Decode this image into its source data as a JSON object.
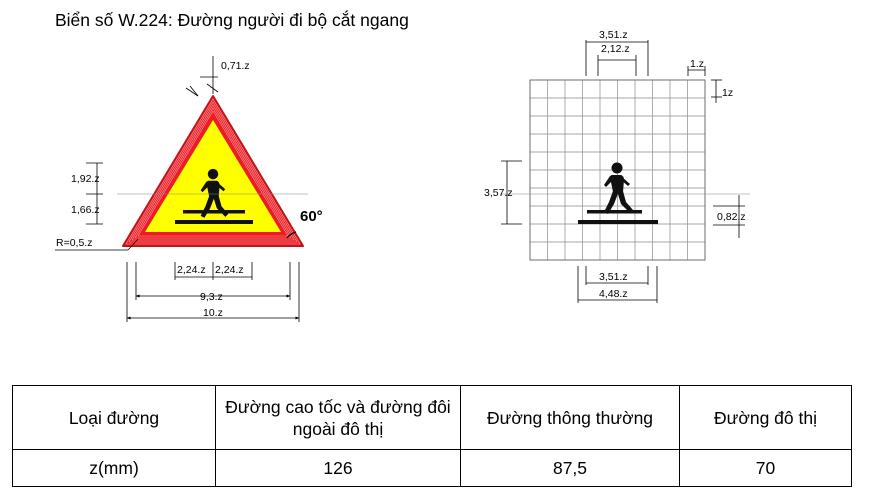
{
  "title": "Biển số W.224: Đường người đi bộ cắt ngang",
  "sign_dimensions": {
    "stroke_offset": "0,71.z",
    "corner_radius": "R=0,5.z",
    "upper_height": "1,92.z",
    "lower_height": "1,66.z",
    "half_left": "2,24.z",
    "half_right": "2,24.z",
    "inner_width": "9,3.z",
    "outer_width": "10.z",
    "angle": "60°"
  },
  "grid_dimensions": {
    "outer_width_top": "3,51.z",
    "inner_width_top": "2,12.z",
    "cell_width": "1.z",
    "cell_height": "1z",
    "symbol_height": "3,57.z",
    "stripe_height": "0,82.z",
    "bottom_width": "3,51.z",
    "bottom_total": "4,48.z"
  },
  "colors": {
    "border_red": "#ed1c24",
    "fill_yellow": "#ffff00",
    "symbol_black": "#111111",
    "grid_line": "#8c8c8c"
  },
  "table": {
    "headers": [
      "Loại đường",
      "Đường cao tốc và đường đôi ngoài đô thị",
      "Đường thông thường",
      "Đường đô thị"
    ],
    "values": [
      "z(mm)",
      "126",
      "87,5",
      "70"
    ]
  }
}
